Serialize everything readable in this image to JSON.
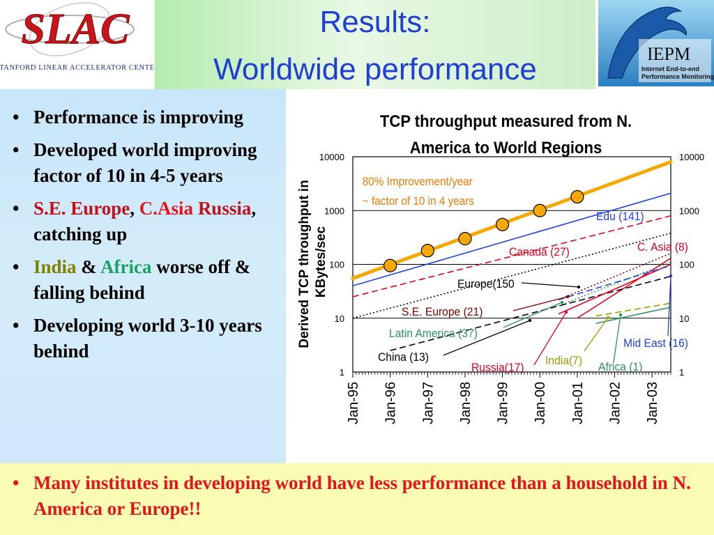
{
  "title": {
    "line1": "Results:",
    "line2": "Worldwide performance"
  },
  "logos": {
    "slac_text": "SLAC",
    "slac_sub": "STANFORD LINEAR ACCELERATOR CENTER",
    "iepm_text": "IEPM",
    "iepm_sub1": "Internet End-to-end",
    "iepm_sub2": "Performance Monitoring"
  },
  "bullets": [
    {
      "parts": [
        {
          "text": "Performance is improving",
          "color": "#000000"
        }
      ]
    },
    {
      "parts": [
        {
          "text": "Developed world improving factor of 10 in 4-5 years",
          "color": "#000000"
        }
      ]
    },
    {
      "parts": [
        {
          "text": "S.E. Europe",
          "color": "#c0101a"
        },
        {
          "text": ", ",
          "color": "#000000"
        },
        {
          "text": "C.Asia",
          "color": "#e6141a"
        },
        {
          "text": " ",
          "color": "#000000"
        },
        {
          "text": "Russia",
          "color": "#c0101a"
        },
        {
          "text": ", catching up",
          "color": "#000000"
        }
      ]
    },
    {
      "parts": [
        {
          "text": "India",
          "color": "#808000"
        },
        {
          "text": " & ",
          "color": "#000000"
        },
        {
          "text": "Africa",
          "color": "#1aa060"
        },
        {
          "text": " worse off & falling behind",
          "color": "#000000"
        }
      ]
    },
    {
      "parts": [
        {
          "text": "Developing world 3-10 years behind",
          "color": "#000000"
        }
      ]
    }
  ],
  "bottom": "Many institutes in developing world have less performance than a household in N. America or Europe!!",
  "chart_data": {
    "type": "line",
    "title": "TCP throughput measured from N. America to World Regions",
    "ylabel": "Derived TCP throughput in KBytes/sec",
    "yscale": "log",
    "ylim": [
      1,
      10000
    ],
    "xlim": [
      "Jan-95",
      "Jul-03"
    ],
    "yticks": [
      "10000",
      "1000",
      "100",
      "10",
      "1"
    ],
    "xticks": [
      "Jan-95",
      "Jan-96",
      "Jan-97",
      "Jan-98",
      "Jan-99",
      "Jan-00",
      "Jan-01",
      "Jan-02",
      "Jan-03"
    ],
    "grid": "horizontal at decades",
    "annotation": {
      "line1": "80% Improvement/year",
      "line2": "~ factor of 10 in 4 years",
      "color": "#ee7a00"
    },
    "highlight_points": {
      "color": "#f5a800",
      "x": [
        "Jan-96",
        "Jan-97",
        "Jan-98",
        "Jan-99",
        "Jan-00",
        "Jan-01"
      ],
      "y": [
        95,
        180,
        300,
        550,
        1000,
        1800
      ]
    },
    "series": [
      {
        "name": "Edu (141)",
        "color": "#2040e0",
        "style": "solid",
        "x": [
          "Jan-95",
          "Jul-03"
        ],
        "y": [
          40,
          2100
        ]
      },
      {
        "name": "Canada (27)",
        "color": "#e00020",
        "style": "dashed",
        "x": [
          "Jan-95",
          "Jul-03"
        ],
        "y": [
          25,
          800
        ]
      },
      {
        "name": "C. Asia (8)",
        "color": "#e00020",
        "style": "solid",
        "x": [
          "Jan-01",
          "Jul-03"
        ],
        "y": [
          10,
          130
        ]
      },
      {
        "name": "Europe(150",
        "color": "#000000",
        "style": "dotted",
        "x": [
          "Jan-95",
          "Jul-03"
        ],
        "y": [
          10,
          380
        ]
      },
      {
        "name": "S.E.  Europe (21)",
        "color": "#800000",
        "style": "dotted",
        "x": [
          "Jul-00",
          "Jul-03"
        ],
        "y": [
          22,
          160
        ]
      },
      {
        "name": "Latin America (37)",
        "color": "#2e9060",
        "style": "dotted",
        "x": [
          "Jul-00",
          "Jul-03"
        ],
        "y": [
          17,
          110
        ]
      },
      {
        "name": "China (13)",
        "color": "#000000",
        "style": "dashed",
        "x": [
          "Jan-96",
          "Jul-03"
        ],
        "y": [
          2.5,
          60
        ]
      },
      {
        "name": "Russia(17)",
        "color": "#e00020",
        "style": "solid",
        "x": [
          "Jul-00",
          "Jul-03"
        ],
        "y": [
          12,
          100
        ]
      },
      {
        "name": "India(7)",
        "color": "#9a9a00",
        "style": "dashed",
        "x": [
          "Jul-01",
          "Jul-03"
        ],
        "y": [
          11,
          19
        ]
      },
      {
        "name": "Africa (1)",
        "color": "#2e9060",
        "style": "solid",
        "x": [
          "Jul-01",
          "Jul-03"
        ],
        "y": [
          8,
          16
        ]
      },
      {
        "name": "Mid East (16)",
        "color": "#2040e0",
        "style": "dashed",
        "x": [
          "Jul-00",
          "Jul-03"
        ],
        "y": [
          22,
          95
        ]
      }
    ],
    "labels": [
      {
        "text": "Edu (141)",
        "color": "#2040e0"
      },
      {
        "text": "C. Asia (8)",
        "color": "#e00020"
      },
      {
        "text": "Canada (27)",
        "color": "#e00020"
      },
      {
        "text": "Europe(150",
        "color": "#000000"
      },
      {
        "text": "S.E.  Europe (21)",
        "color": "#800000"
      },
      {
        "text": "Latin America (37)",
        "color": "#2e9060"
      },
      {
        "text": "China (13)",
        "color": "#000000"
      },
      {
        "text": "Russia(17)",
        "color": "#e00020"
      },
      {
        "text": "India(7)",
        "color": "#9a9a00"
      },
      {
        "text": "Africa (1)",
        "color": "#2e9060"
      },
      {
        "text": "Mid East (16)",
        "color": "#2040e0"
      }
    ]
  }
}
